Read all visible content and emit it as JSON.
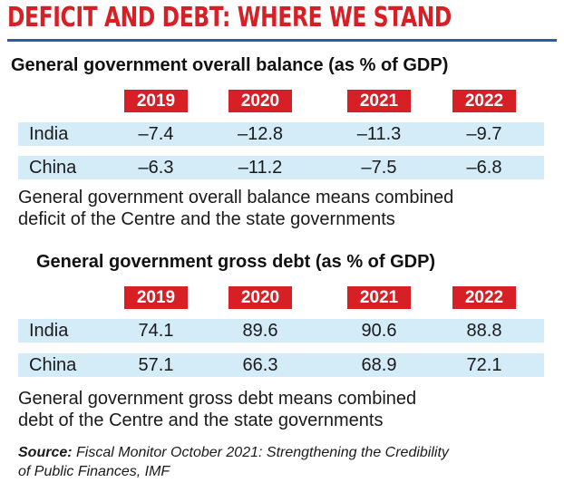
{
  "title": "DEFICIT AND DEBT: WHERE WE STAND",
  "colors": {
    "accent": "#d71f26",
    "rule": "#2b5bb0",
    "row_fill": "#d4ecf7"
  },
  "chart_data": [
    {
      "type": "table",
      "title": "General government overall balance (as % of GDP)",
      "columns": [
        "2019",
        "2020",
        "2021",
        "2022"
      ],
      "rows": [
        {
          "label": "India",
          "values": [
            "–7.4",
            "–12.8",
            "–11.3",
            "–9.7"
          ]
        },
        {
          "label": "China",
          "values": [
            "–6.3",
            "–11.2",
            "–7.5",
            "–6.8"
          ]
        }
      ],
      "note": [
        "General government overall balance means combined",
        "deficit of the Centre and the state governments"
      ]
    },
    {
      "type": "table",
      "title": "General government gross debt (as % of GDP)",
      "columns": [
        "2019",
        "2020",
        "2021",
        "2022"
      ],
      "rows": [
        {
          "label": "India",
          "values": [
            "74.1",
            "89.6",
            "90.6",
            "88.8"
          ]
        },
        {
          "label": "China",
          "values": [
            "57.1",
            "66.3",
            "68.9",
            "72.1"
          ]
        }
      ],
      "note": [
        "General government gross debt means combined",
        "debt of the Centre and the state governments"
      ]
    }
  ],
  "source": {
    "label": "Source:",
    "text": " Fiscal Monitor October 2021: Strengthening the Credibility",
    "text2": "of Public Finances, IMF"
  }
}
